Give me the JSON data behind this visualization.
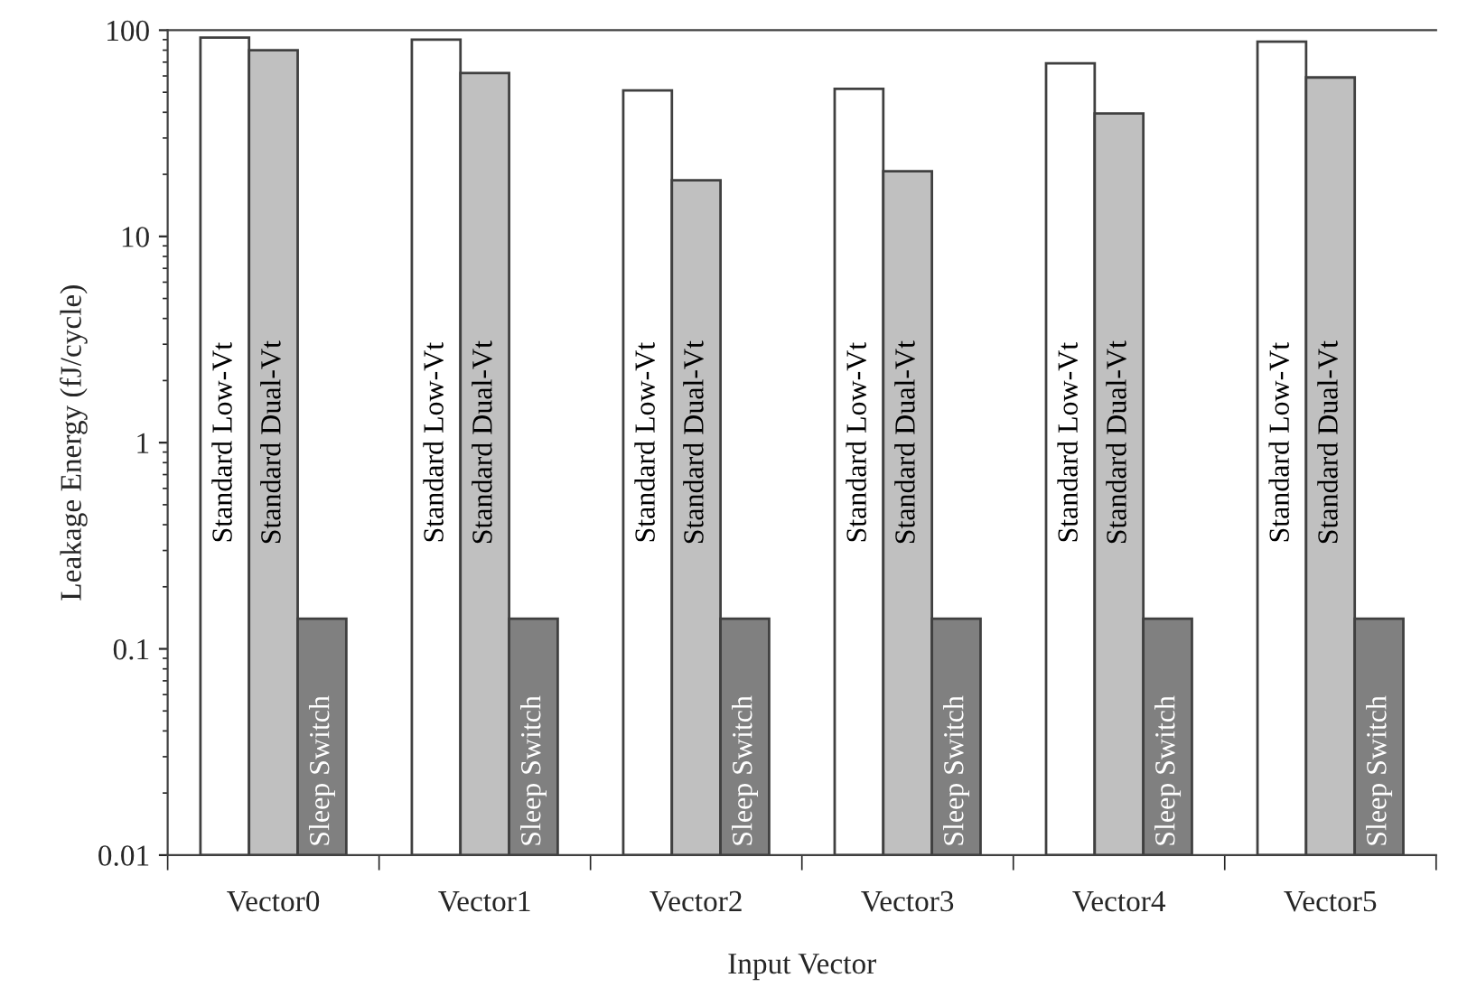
{
  "chart_data": {
    "type": "bar",
    "xlabel": "Input Vector",
    "ylabel": "Leakage Energy (fJ/cycle)",
    "categories": [
      "Vector0",
      "Vector1",
      "Vector2",
      "Vector3",
      "Vector4",
      "Vector5"
    ],
    "series": [
      {
        "name": "Standard Low-Vt",
        "color": "#ffffff",
        "values": [
          92,
          90,
          51,
          52,
          69,
          88
        ]
      },
      {
        "name": "Standard Dual-Vt",
        "color": "#c0c0c0",
        "values": [
          80,
          62,
          18.7,
          20.7,
          39.5,
          59
        ]
      },
      {
        "name": "Sleep Switch",
        "color": "#808080",
        "values": [
          0.14,
          0.14,
          0.14,
          0.14,
          0.14,
          0.14
        ]
      }
    ],
    "log": "y",
    "ylim": [
      0.01,
      100
    ],
    "yticks": [
      0.01,
      0.1,
      1,
      10,
      100
    ],
    "grid": false,
    "legend": false
  }
}
